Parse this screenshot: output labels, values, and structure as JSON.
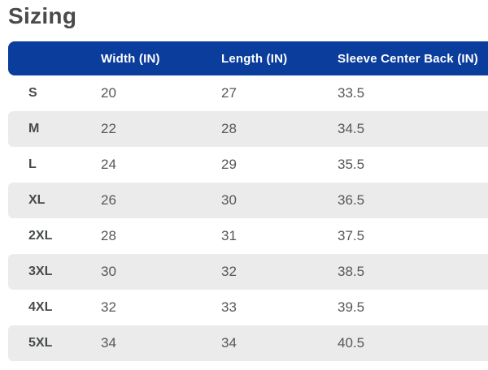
{
  "page": {
    "title": "Sizing"
  },
  "table": {
    "headers": {
      "size": "",
      "width": "Width (IN)",
      "length": "Length (IN)",
      "sleeve": "Sleeve Center Back (IN)"
    },
    "rows": [
      {
        "size": "S",
        "width": "20",
        "length": "27",
        "sleeve": "33.5"
      },
      {
        "size": "M",
        "width": "22",
        "length": "28",
        "sleeve": "34.5"
      },
      {
        "size": "L",
        "width": "24",
        "length": "29",
        "sleeve": "35.5"
      },
      {
        "size": "XL",
        "width": "26",
        "length": "30",
        "sleeve": "36.5"
      },
      {
        "size": "2XL",
        "width": "28",
        "length": "31",
        "sleeve": "37.5"
      },
      {
        "size": "3XL",
        "width": "30",
        "length": "32",
        "sleeve": "38.5"
      },
      {
        "size": "4XL",
        "width": "32",
        "length": "33",
        "sleeve": "39.5"
      },
      {
        "size": "5XL",
        "width": "34",
        "length": "34",
        "sleeve": "40.5"
      }
    ]
  },
  "colors": {
    "header_bg": "#0b3d9d",
    "header_text": "#ffffff",
    "alt_row_bg": "#ebebeb",
    "title_text": "#4a4a4a",
    "value_text": "#54575a",
    "size_label_text": "#474a4c"
  }
}
